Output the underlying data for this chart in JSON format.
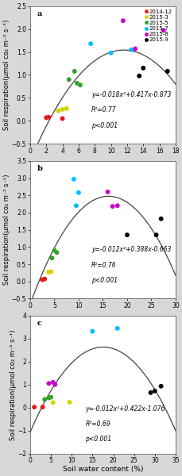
{
  "panels": [
    {
      "label": "a",
      "equation": "y=-0.018x²+0.417x-0.873",
      "r2": "R²=0.77",
      "p": "p<0.001",
      "coeffs": [
        -0.018,
        0.417,
        -0.873
      ],
      "xlim": [
        0,
        18
      ],
      "ylim": [
        -0.5,
        2.5
      ],
      "xticks": [
        0,
        2,
        4,
        6,
        8,
        10,
        12,
        14,
        16,
        18
      ],
      "yticks": [
        -0.5,
        0.0,
        0.5,
        1.0,
        1.5,
        2.0,
        2.5
      ],
      "data": {
        "2014-12": {
          "color": "#e41a1c",
          "points": [
            [
              2.0,
              0.07
            ],
            [
              2.3,
              0.08
            ],
            [
              4.0,
              0.05
            ]
          ]
        },
        "2015-3": {
          "color": "#d4d400",
          "points": [
            [
              3.5,
              0.22
            ],
            [
              4.0,
              0.25
            ],
            [
              4.5,
              0.27
            ]
          ]
        },
        "2015-5": {
          "color": "#33a02c",
          "points": [
            [
              4.8,
              0.9
            ],
            [
              5.5,
              1.08
            ],
            [
              5.8,
              0.82
            ],
            [
              6.2,
              0.78
            ]
          ]
        },
        "2015-7": {
          "color": "#00bfff",
          "points": [
            [
              7.5,
              1.68
            ],
            [
              10.0,
              1.48
            ],
            [
              12.5,
              1.55
            ]
          ]
        },
        "2015-8": {
          "color": "#cc00cc",
          "points": [
            [
              11.5,
              2.18
            ],
            [
              13.0,
              1.57
            ],
            [
              16.5,
              1.97
            ]
          ]
        },
        "2015-9": {
          "color": "#000000",
          "points": [
            [
              13.5,
              0.98
            ],
            [
              14.0,
              1.15
            ],
            [
              17.0,
              1.08
            ]
          ]
        }
      },
      "show_legend": true
    },
    {
      "label": "b",
      "equation": "y=-0.012x²+0.388x-0.663",
      "r2": "R²=0.76",
      "p": "p<0.001",
      "coeffs": [
        -0.012,
        0.388,
        -0.663
      ],
      "xlim": [
        0,
        30
      ],
      "ylim": [
        -0.5,
        3.5
      ],
      "xticks": [
        0,
        5,
        10,
        15,
        20,
        25,
        30
      ],
      "yticks": [
        -0.5,
        0.0,
        0.5,
        1.0,
        1.5,
        2.0,
        2.5,
        3.0,
        3.5
      ],
      "data": {
        "2014-12": {
          "color": "#e41a1c",
          "points": [
            [
              2.5,
              0.05
            ],
            [
              3.0,
              0.07
            ]
          ]
        },
        "2015-3": {
          "color": "#d4d400",
          "points": [
            [
              3.8,
              0.27
            ],
            [
              4.3,
              0.28
            ]
          ]
        },
        "2015-5": {
          "color": "#33a02c",
          "points": [
            [
              4.5,
              0.68
            ],
            [
              5.0,
              0.9
            ],
            [
              5.5,
              0.84
            ]
          ]
        },
        "2015-7": {
          "color": "#00bfff",
          "points": [
            [
              9.0,
              2.97
            ],
            [
              9.5,
              2.2
            ],
            [
              10.0,
              2.58
            ]
          ]
        },
        "2015-8": {
          "color": "#cc00cc",
          "points": [
            [
              16.0,
              2.6
            ],
            [
              17.0,
              2.18
            ],
            [
              18.0,
              2.2
            ]
          ]
        },
        "2015-9": {
          "color": "#000000",
          "points": [
            [
              20.0,
              1.35
            ],
            [
              26.0,
              1.35
            ],
            [
              27.0,
              1.82
            ]
          ]
        }
      },
      "show_legend": false
    },
    {
      "label": "c",
      "equation": "y=-0.012x²+0.422x-1.076",
      "r2": "R²=0.69",
      "p": "p<0.001",
      "coeffs": [
        -0.012,
        0.422,
        -1.076
      ],
      "xlim": [
        0,
        35
      ],
      "ylim": [
        -2,
        4
      ],
      "xticks": [
        0,
        5,
        10,
        15,
        20,
        25,
        30,
        35
      ],
      "yticks": [
        -2,
        -1,
        0,
        1,
        2,
        3,
        4
      ],
      "data": {
        "2014-12": {
          "color": "#e41a1c",
          "points": [
            [
              1.0,
              0.02
            ],
            [
              3.0,
              0.02
            ]
          ]
        },
        "2015-3": {
          "color": "#d4d400",
          "points": [
            [
              5.5,
              0.22
            ],
            [
              9.5,
              0.23
            ]
          ]
        },
        "2015-5": {
          "color": "#33a02c",
          "points": [
            [
              3.5,
              0.35
            ],
            [
              4.5,
              0.42
            ],
            [
              5.0,
              0.45
            ]
          ]
        },
        "2015-7": {
          "color": "#00bfff",
          "points": [
            [
              15.0,
              3.32
            ],
            [
              21.0,
              3.45
            ]
          ]
        },
        "2015-8": {
          "color": "#cc00cc",
          "points": [
            [
              4.5,
              1.05
            ],
            [
              5.5,
              1.1
            ],
            [
              6.0,
              1.0
            ]
          ]
        },
        "2015-9": {
          "color": "#000000",
          "points": [
            [
              29.0,
              0.65
            ],
            [
              30.0,
              0.72
            ],
            [
              31.5,
              0.93
            ]
          ]
        }
      },
      "show_legend": false
    }
  ],
  "legend_items": [
    {
      "label": "2014-12",
      "color": "#e41a1c"
    },
    {
      "label": "2015-3",
      "color": "#d4d400"
    },
    {
      "label": "2015-5",
      "color": "#33a02c"
    },
    {
      "label": "2015-7",
      "color": "#00bfff"
    },
    {
      "label": "2015-8",
      "color": "#cc00cc"
    },
    {
      "label": "2015-9",
      "color": "#000000"
    }
  ],
  "ylabel": "Soil respiration(μmol co₂ m⁻² s⁻¹)",
  "xlabel": "Soil water content (%)",
  "fig_bg": "#d8d8d8",
  "panel_bg": "#ffffff",
  "curve_color": "#444444",
  "tick_fontsize": 5.5,
  "label_fontsize": 6.0,
  "xlabel_fontsize": 6.5,
  "annot_fontsize": 5.5,
  "legend_fontsize": 5.0,
  "marker_size": 18
}
